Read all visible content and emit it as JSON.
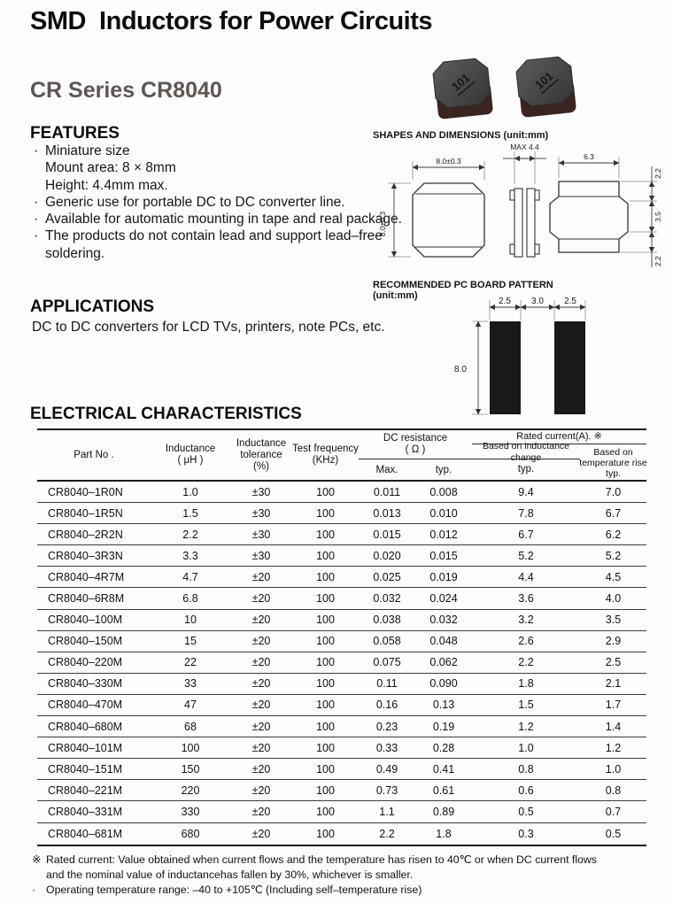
{
  "doc": {
    "title": "SMD  Inductors for Power Circuits",
    "series": "CR Series CR8040"
  },
  "features": {
    "heading": "FEATURES",
    "lines": [
      {
        "bullet": "·",
        "text": "Miniature size"
      },
      {
        "bullet": "",
        "text": "Mount area: 8 × 8mm"
      },
      {
        "bullet": "",
        "text": "Height: 4.4mm max."
      },
      {
        "bullet": "·",
        "text": "Generic use for portable DC to DC converter line."
      },
      {
        "bullet": "·",
        "text": "Available for automatic mounting in tape and real package."
      },
      {
        "bullet": "·",
        "text": "The products do not contain lead and support lead–free"
      },
      {
        "bullet": "",
        "text": "soldering."
      }
    ]
  },
  "applications": {
    "heading": "APPLICATIONS",
    "text": "DC to DC converters for LCD TVs, printers, note PCs, etc."
  },
  "shapes": {
    "heading": "SHAPES AND DIMENSIONS (unit:mm)",
    "marking": "101",
    "front": {
      "w": "8.0±0.3",
      "h": "8.0±0.3"
    },
    "side": {
      "h": "MAX 4.4"
    },
    "profile": {
      "w": "6.3",
      "t": "2.2",
      "m": "3.5",
      "b": "2.2"
    }
  },
  "pcb": {
    "heading": "RECOMMENDED PC BOARD PATTERN",
    "unit": "(unit:mm)",
    "d1": "2.5",
    "d2": "3.0",
    "d3": "2.5",
    "h": "8.0"
  },
  "table": {
    "heading": "ELECTRICAL CHARACTERISTICS",
    "headers": {
      "part": "Part No .",
      "ind1": "Inductance",
      "ind2": "( μH )",
      "tol1": "Inductance",
      "tol2": "tolerance",
      "tol3": "(%)",
      "freq1": "Test frequency",
      "freq2": "(KHz)",
      "dcres1": "DC resistance",
      "dcres2": "( Ω )",
      "max": "Max.",
      "typ": "typ.",
      "rated": "Rated current(A). ※",
      "based_ind": "Based on inductance change",
      "based_ind_typ": "typ.",
      "based_temp1": "Based on",
      "based_temp2": "temperature rise",
      "based_temp3": "typ."
    },
    "rows": [
      [
        "CR8040–1R0N",
        "1.0",
        "±30",
        "100",
        "0.011",
        "0.008",
        "9.4",
        "7.0"
      ],
      [
        "CR8040–1R5N",
        "1.5",
        "±30",
        "100",
        "0.013",
        "0.010",
        "7.8",
        "6.7"
      ],
      [
        "CR8040–2R2N",
        "2.2",
        "±30",
        "100",
        "0.015",
        "0.012",
        "6.7",
        "6.2"
      ],
      [
        "CR8040–3R3N",
        "3.3",
        "±30",
        "100",
        "0.020",
        "0.015",
        "5.2",
        "5.2"
      ],
      [
        "CR8040–4R7M",
        "4.7",
        "±20",
        "100",
        "0.025",
        "0.019",
        "4.4",
        "4.5"
      ],
      [
        "CR8040–6R8M",
        "6.8",
        "±20",
        "100",
        "0.032",
        "0.024",
        "3.6",
        "4.0"
      ],
      [
        "CR8040–100M",
        "10",
        "±20",
        "100",
        "0.038",
        "0.032",
        "3.2",
        "3.5"
      ],
      [
        "CR8040–150M",
        "15",
        "±20",
        "100",
        "0.058",
        "0.048",
        "2.6",
        "2.9"
      ],
      [
        "CR8040–220M",
        "22",
        "±20",
        "100",
        "0.075",
        "0.062",
        "2.2",
        "2.5"
      ],
      [
        "CR8040–330M",
        "33",
        "±20",
        "100",
        "0.11",
        "0.090",
        "1.8",
        "2.1"
      ],
      [
        "CR8040–470M",
        "47",
        "±20",
        "100",
        "0.16",
        "0.13",
        "1.5",
        "1.7"
      ],
      [
        "CR8040–680M",
        "68",
        "±20",
        "100",
        "0.23",
        "0.19",
        "1.2",
        "1.4"
      ],
      [
        "CR8040–101M",
        "100",
        "±20",
        "100",
        "0.33",
        "0.28",
        "1.0",
        "1.2"
      ],
      [
        "CR8040–151M",
        "150",
        "±20",
        "100",
        "0.49",
        "0.41",
        "0.8",
        "1.0"
      ],
      [
        "CR8040–221M",
        "220",
        "±20",
        "100",
        "0.73",
        "0.61",
        "0.6",
        "0.8"
      ],
      [
        "CR8040–331M",
        "330",
        "±20",
        "100",
        "1.1",
        "0.89",
        "0.5",
        "0.7"
      ],
      [
        "CR8040–681M",
        "680",
        "±20",
        "100",
        "2.2",
        "1.8",
        "0.3",
        "0.5"
      ]
    ]
  },
  "notes": {
    "m1": "※",
    "l1": "Rated current: Value obtained when current flows and the temperature has risen to 40℃ or when DC current flows",
    "l2": "and the nominal value of inductancehas fallen by 30%, whichever is smaller.",
    "m3": "·",
    "l3": "Operating temperature range: –40 to +105℃ (Including self–temperature rise)"
  }
}
